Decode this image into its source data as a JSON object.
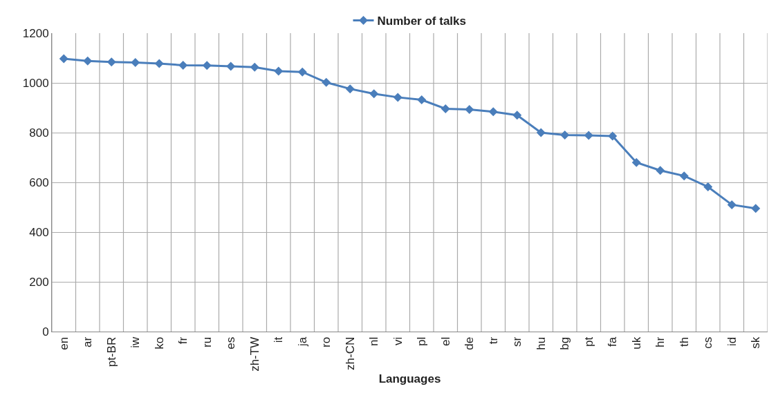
{
  "chart_data": {
    "type": "line",
    "xlabel": "Languages",
    "categories": [
      "en",
      "ar",
      "pt-BR",
      "iw",
      "ko",
      "fr",
      "ru",
      "es",
      "zh-TW",
      "it",
      "ja",
      "ro",
      "zh-CN",
      "nl",
      "vi",
      "pl",
      "el",
      "de",
      "tr",
      "sr",
      "hu",
      "bg",
      "pt",
      "fa",
      "uk",
      "hr",
      "th",
      "cs",
      "id",
      "sk"
    ],
    "series": [
      {
        "name": "Number of talks",
        "color": "#4a7ebb",
        "values": [
          1097,
          1088,
          1084,
          1082,
          1078,
          1071,
          1070,
          1067,
          1063,
          1047,
          1044,
          1002,
          976,
          956,
          942,
          932,
          896,
          893,
          884,
          870,
          800,
          790,
          789,
          786,
          680,
          648,
          626,
          582,
          510,
          495
        ]
      }
    ],
    "ylim": [
      0,
      1200
    ],
    "yticks": [
      0,
      200,
      400,
      600,
      800,
      1000,
      1200
    ],
    "grid": true,
    "legend": "top",
    "marker": "diamond",
    "line_style": "solid"
  }
}
